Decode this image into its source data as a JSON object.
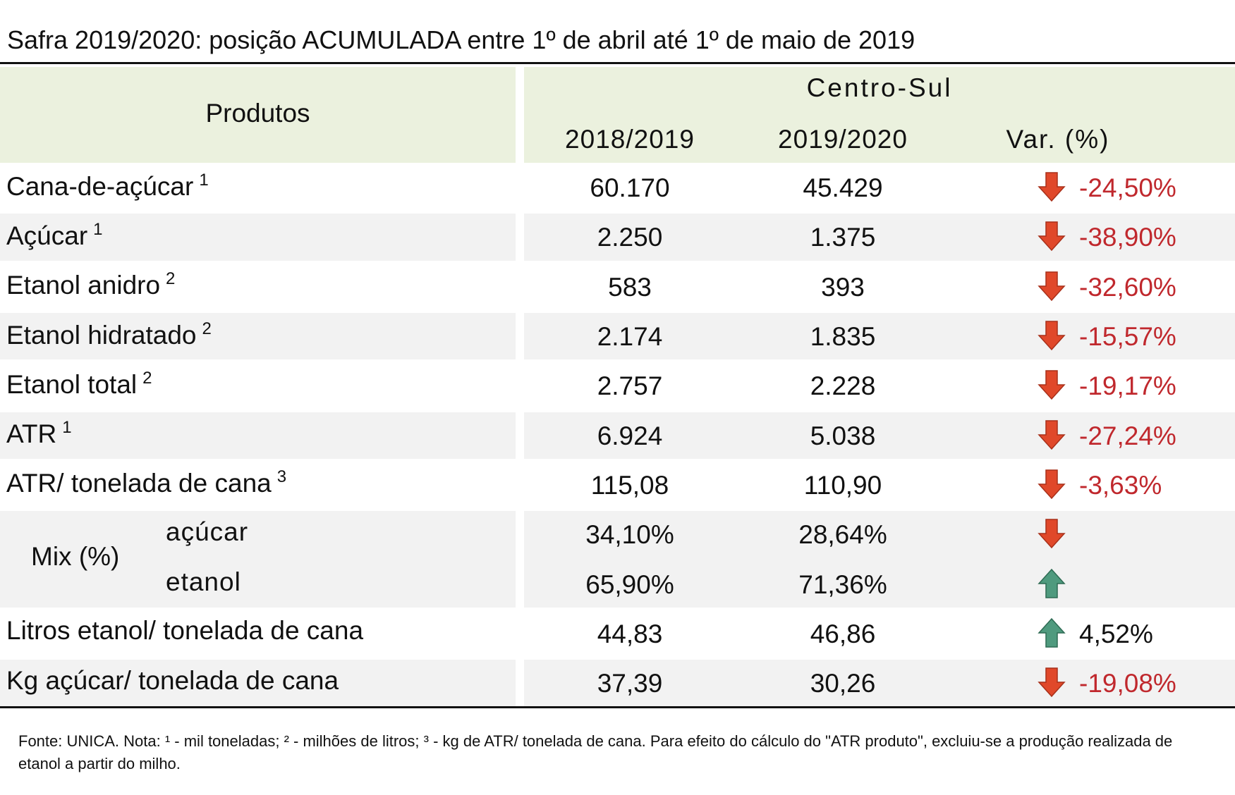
{
  "title": "Safra 2019/2020: posição ACUMULADA entre 1º de abril até 1º de maio de 2019",
  "table": {
    "header": {
      "products": "Produtos",
      "region": "Centro-Sul",
      "columns": [
        "2018/2019",
        "2019/2020",
        "Var. (%)"
      ]
    },
    "rows": [
      {
        "label": "Cana-de-açúcar",
        "note": "1",
        "values": [
          "60.170",
          "45.429"
        ],
        "var": "-24,50%",
        "trend": "down"
      },
      {
        "label": "Açúcar",
        "note": "1",
        "values": [
          "2.250",
          "1.375"
        ],
        "var": "-38,90%",
        "trend": "down"
      },
      {
        "label": "Etanol anidro",
        "note": "2",
        "values": [
          "583",
          "393"
        ],
        "var": "-32,60%",
        "trend": "down"
      },
      {
        "label": "Etanol hidratado",
        "note": "2",
        "values": [
          "2.174",
          "1.835"
        ],
        "var": "-15,57%",
        "trend": "down"
      },
      {
        "label": "Etanol total",
        "note": "2",
        "values": [
          "2.757",
          "2.228"
        ],
        "var": "-19,17%",
        "trend": "down"
      },
      {
        "label": "ATR",
        "note": "1",
        "values": [
          "6.924",
          "5.038"
        ],
        "var": "-27,24%",
        "trend": "down"
      },
      {
        "label": "ATR/ tonelada de cana",
        "note": "3",
        "values": [
          "115,08",
          "110,90"
        ],
        "var": "-3,63%",
        "trend": "down"
      },
      {
        "label": "Mix (%)",
        "items": [
          {
            "label": "açúcar",
            "values": [
              "34,10%",
              "28,64%"
            ],
            "trend": "down"
          },
          {
            "label": "etanol",
            "values": [
              "65,90%",
              "71,36%"
            ],
            "trend": "up"
          }
        ]
      },
      {
        "label": "Litros etanol/ tonelada de cana",
        "values": [
          "44,83",
          "46,86"
        ],
        "var": "4,52%",
        "trend": "up"
      },
      {
        "label": "Kg açúcar/ tonelada de cana",
        "values": [
          "37,39",
          "30,26"
        ],
        "var": "-19,08%",
        "trend": "down"
      }
    ]
  },
  "footnote": "Fonte: UNICA. Nota: ¹ - mil toneladas; ² - milhões de litros; ³ - kg de ATR/ tonelada de cana. Para efeito do cálculo do \"ATR produto\", excluiu-se a produção realizada de etanol a partir do milho."
}
